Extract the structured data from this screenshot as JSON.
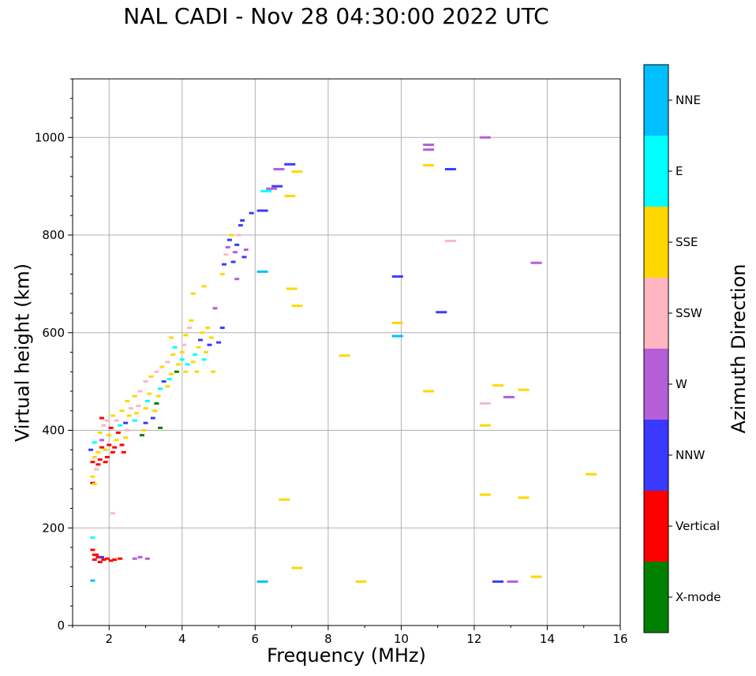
{
  "chart_data": {
    "type": "scatter",
    "title": "NAL CADI - Nov 28 04:30:00 2022 UTC",
    "xlabel": "Frequency (MHz)",
    "ylabel": "Virtual height (km)",
    "colorbar_label": "Azimuth Direction",
    "xlim": [
      1,
      16
    ],
    "ylim": [
      0,
      1120
    ],
    "xticks": [
      2,
      4,
      6,
      8,
      10,
      12,
      14,
      16
    ],
    "yticks": [
      0,
      200,
      400,
      600,
      800,
      1000
    ],
    "grid": true,
    "categories": [
      {
        "name": "X-mode",
        "color": "#008000"
      },
      {
        "name": "Vertical",
        "color": "#ff0000"
      },
      {
        "name": "NNW",
        "color": "#3a3aff"
      },
      {
        "name": "W",
        "color": "#b45fd8"
      },
      {
        "name": "SSW",
        "color": "#ffb6c1"
      },
      {
        "name": "SSE",
        "color": "#ffd700"
      },
      {
        "name": "E",
        "color": "#00ffff"
      },
      {
        "name": "NNE",
        "color": "#00bfff"
      }
    ],
    "points": [
      [
        1.55,
        292,
        "Vertical"
      ],
      [
        1.6,
        290,
        "SSE"
      ],
      [
        1.55,
        305,
        "SSE"
      ],
      [
        1.65,
        320,
        "SSW"
      ],
      [
        1.55,
        335,
        "Vertical"
      ],
      [
        1.6,
        345,
        "SSE"
      ],
      [
        1.5,
        360,
        "NNW"
      ],
      [
        1.6,
        375,
        "E"
      ],
      [
        1.7,
        330,
        "Vertical"
      ],
      [
        1.75,
        340,
        "Vertical"
      ],
      [
        1.7,
        355,
        "SSE"
      ],
      [
        1.8,
        365,
        "Vertical"
      ],
      [
        1.8,
        380,
        "W"
      ],
      [
        1.75,
        395,
        "SSE"
      ],
      [
        1.85,
        410,
        "SSW"
      ],
      [
        1.8,
        425,
        "Vertical"
      ],
      [
        1.9,
        335,
        "Vertical"
      ],
      [
        1.95,
        345,
        "Vertical"
      ],
      [
        1.9,
        360,
        "SSE"
      ],
      [
        2.0,
        370,
        "Vertical"
      ],
      [
        2.0,
        390,
        "SSE"
      ],
      [
        2.05,
        405,
        "Vertical"
      ],
      [
        1.95,
        420,
        "SSW"
      ],
      [
        2.1,
        430,
        "SSE"
      ],
      [
        2.1,
        355,
        "Vertical"
      ],
      [
        2.15,
        365,
        "Vertical"
      ],
      [
        2.2,
        380,
        "SSE"
      ],
      [
        2.25,
        395,
        "Vertical"
      ],
      [
        2.3,
        410,
        "E"
      ],
      [
        2.2,
        420,
        "SSW"
      ],
      [
        2.35,
        440,
        "SSE"
      ],
      [
        2.4,
        355,
        "Vertical"
      ],
      [
        2.35,
        370,
        "Vertical"
      ],
      [
        2.45,
        385,
        "SSE"
      ],
      [
        2.5,
        400,
        "SSW"
      ],
      [
        2.45,
        415,
        "NNW"
      ],
      [
        2.55,
        430,
        "SSE"
      ],
      [
        2.6,
        445,
        "SSW"
      ],
      [
        2.5,
        460,
        "SSE"
      ],
      [
        2.7,
        420,
        "E"
      ],
      [
        2.75,
        435,
        "SSE"
      ],
      [
        2.8,
        450,
        "SSW"
      ],
      [
        2.7,
        470,
        "SSE"
      ],
      [
        2.85,
        480,
        "SSW"
      ],
      [
        2.9,
        390,
        "X-mode"
      ],
      [
        2.95,
        400,
        "SSE"
      ],
      [
        3.0,
        415,
        "NNW"
      ],
      [
        3.0,
        445,
        "SSE"
      ],
      [
        3.05,
        460,
        "E"
      ],
      [
        3.1,
        475,
        "SSE"
      ],
      [
        3.0,
        500,
        "SSW"
      ],
      [
        3.15,
        510,
        "SSE"
      ],
      [
        3.2,
        425,
        "NNW"
      ],
      [
        3.25,
        440,
        "SSE"
      ],
      [
        3.3,
        455,
        "X-mode"
      ],
      [
        3.35,
        470,
        "SSE"
      ],
      [
        3.4,
        485,
        "E"
      ],
      [
        3.3,
        520,
        "SSW"
      ],
      [
        3.45,
        530,
        "SSE"
      ],
      [
        3.5,
        500,
        "NNW"
      ],
      [
        3.4,
        405,
        "X-mode"
      ],
      [
        3.6,
        490,
        "SSE"
      ],
      [
        3.65,
        505,
        "E"
      ],
      [
        3.7,
        515,
        "SSE"
      ],
      [
        3.6,
        540,
        "SSW"
      ],
      [
        3.75,
        555,
        "SSE"
      ],
      [
        3.8,
        570,
        "E"
      ],
      [
        3.7,
        590,
        "SSE"
      ],
      [
        3.85,
        520,
        "X-mode"
      ],
      [
        3.9,
        535,
        "SSE"
      ],
      [
        4.0,
        545,
        "E"
      ],
      [
        4.0,
        560,
        "SSE"
      ],
      [
        4.05,
        575,
        "SSW"
      ],
      [
        4.1,
        520,
        "SSE"
      ],
      [
        4.15,
        535,
        "E"
      ],
      [
        4.1,
        595,
        "SSE"
      ],
      [
        4.2,
        610,
        "SSW"
      ],
      [
        4.25,
        625,
        "SSE"
      ],
      [
        4.3,
        540,
        "SSE"
      ],
      [
        4.35,
        555,
        "E"
      ],
      [
        4.4,
        520,
        "SSE"
      ],
      [
        4.45,
        570,
        "SSE"
      ],
      [
        4.5,
        585,
        "NNW"
      ],
      [
        4.55,
        600,
        "SSE"
      ],
      [
        4.6,
        545,
        "E"
      ],
      [
        4.65,
        560,
        "SSE"
      ],
      [
        4.75,
        575,
        "NNW"
      ],
      [
        4.8,
        590,
        "SSE"
      ],
      [
        4.7,
        610,
        "SSE"
      ],
      [
        4.85,
        520,
        "SSE"
      ],
      [
        4.9,
        650,
        "W"
      ],
      [
        4.3,
        680,
        "SSE"
      ],
      [
        4.6,
        695,
        "SSE"
      ],
      [
        5.0,
        580,
        "NNW"
      ],
      [
        5.1,
        610,
        "NNW"
      ],
      [
        5.1,
        720,
        "SSE"
      ],
      [
        5.15,
        740,
        "NNW"
      ],
      [
        5.2,
        760,
        "SSW"
      ],
      [
        5.25,
        775,
        "W"
      ],
      [
        5.3,
        790,
        "NNW"
      ],
      [
        5.35,
        800,
        "SSE"
      ],
      [
        5.4,
        745,
        "NNW"
      ],
      [
        5.45,
        765,
        "W"
      ],
      [
        5.5,
        780,
        "NNW"
      ],
      [
        5.55,
        800,
        "SSW"
      ],
      [
        5.6,
        820,
        "NNW"
      ],
      [
        5.65,
        830,
        "NNW"
      ],
      [
        5.7,
        755,
        "NNW"
      ],
      [
        5.75,
        770,
        "W"
      ],
      [
        5.5,
        710,
        "W"
      ],
      [
        5.9,
        845,
        "NNW"
      ],
      [
        6.2,
        850,
        "NNW"
      ],
      [
        6.3,
        890,
        "E"
      ],
      [
        6.45,
        895,
        "W"
      ],
      [
        6.6,
        900,
        "NNW"
      ],
      [
        6.65,
        935,
        "W"
      ],
      [
        6.95,
        945,
        "NNW"
      ],
      [
        7.15,
        930,
        "SSE"
      ],
      [
        6.95,
        880,
        "SSE"
      ],
      [
        6.2,
        725,
        "NNE"
      ],
      [
        7.0,
        690,
        "SSE"
      ],
      [
        7.15,
        655,
        "SSE"
      ],
      [
        6.8,
        258,
        "SSE"
      ],
      [
        7.15,
        118,
        "SSE"
      ],
      [
        6.2,
        90,
        "NNE"
      ],
      [
        8.45,
        553,
        "SSE"
      ],
      [
        8.9,
        90,
        "SSE"
      ],
      [
        9.9,
        620,
        "SSE"
      ],
      [
        9.9,
        593,
        "NNE"
      ],
      [
        9.9,
        715,
        "NNW"
      ],
      [
        10.75,
        985,
        "W"
      ],
      [
        10.75,
        975,
        "W"
      ],
      [
        10.75,
        943,
        "SSE"
      ],
      [
        10.75,
        480,
        "SSE"
      ],
      [
        11.1,
        642,
        "NNW"
      ],
      [
        11.35,
        935,
        "NNW"
      ],
      [
        11.35,
        788,
        "SSW"
      ],
      [
        12.3,
        1000,
        "W"
      ],
      [
        12.3,
        455,
        "SSW"
      ],
      [
        12.3,
        410,
        "SSE"
      ],
      [
        12.3,
        268,
        "SSE"
      ],
      [
        12.65,
        492,
        "SSE"
      ],
      [
        12.65,
        90,
        "NNW"
      ],
      [
        13.05,
        90,
        "W"
      ],
      [
        12.95,
        468,
        "W"
      ],
      [
        13.35,
        483,
        "SSE"
      ],
      [
        13.35,
        262,
        "SSE"
      ],
      [
        13.7,
        743,
        "W"
      ],
      [
        13.7,
        100,
        "SSE"
      ],
      [
        15.2,
        310,
        "SSE"
      ],
      [
        1.55,
        180,
        "E"
      ],
      [
        1.55,
        155,
        "Vertical"
      ],
      [
        1.6,
        145,
        "Vertical"
      ],
      [
        1.6,
        135,
        "Vertical"
      ],
      [
        1.7,
        140,
        "Vertical"
      ],
      [
        1.75,
        130,
        "Vertical"
      ],
      [
        1.8,
        140,
        "NNW"
      ],
      [
        1.85,
        135,
        "Vertical"
      ],
      [
        1.95,
        137,
        "Vertical"
      ],
      [
        2.05,
        133,
        "Vertical"
      ],
      [
        2.15,
        135,
        "Vertical"
      ],
      [
        2.3,
        137,
        "Vertical"
      ],
      [
        2.1,
        230,
        "SSW"
      ],
      [
        2.7,
        137,
        "W"
      ],
      [
        2.85,
        140,
        "W"
      ],
      [
        3.05,
        137,
        "W"
      ],
      [
        1.55,
        92,
        "NNE"
      ],
      [
        1.65,
        145,
        "Vertical"
      ]
    ]
  }
}
